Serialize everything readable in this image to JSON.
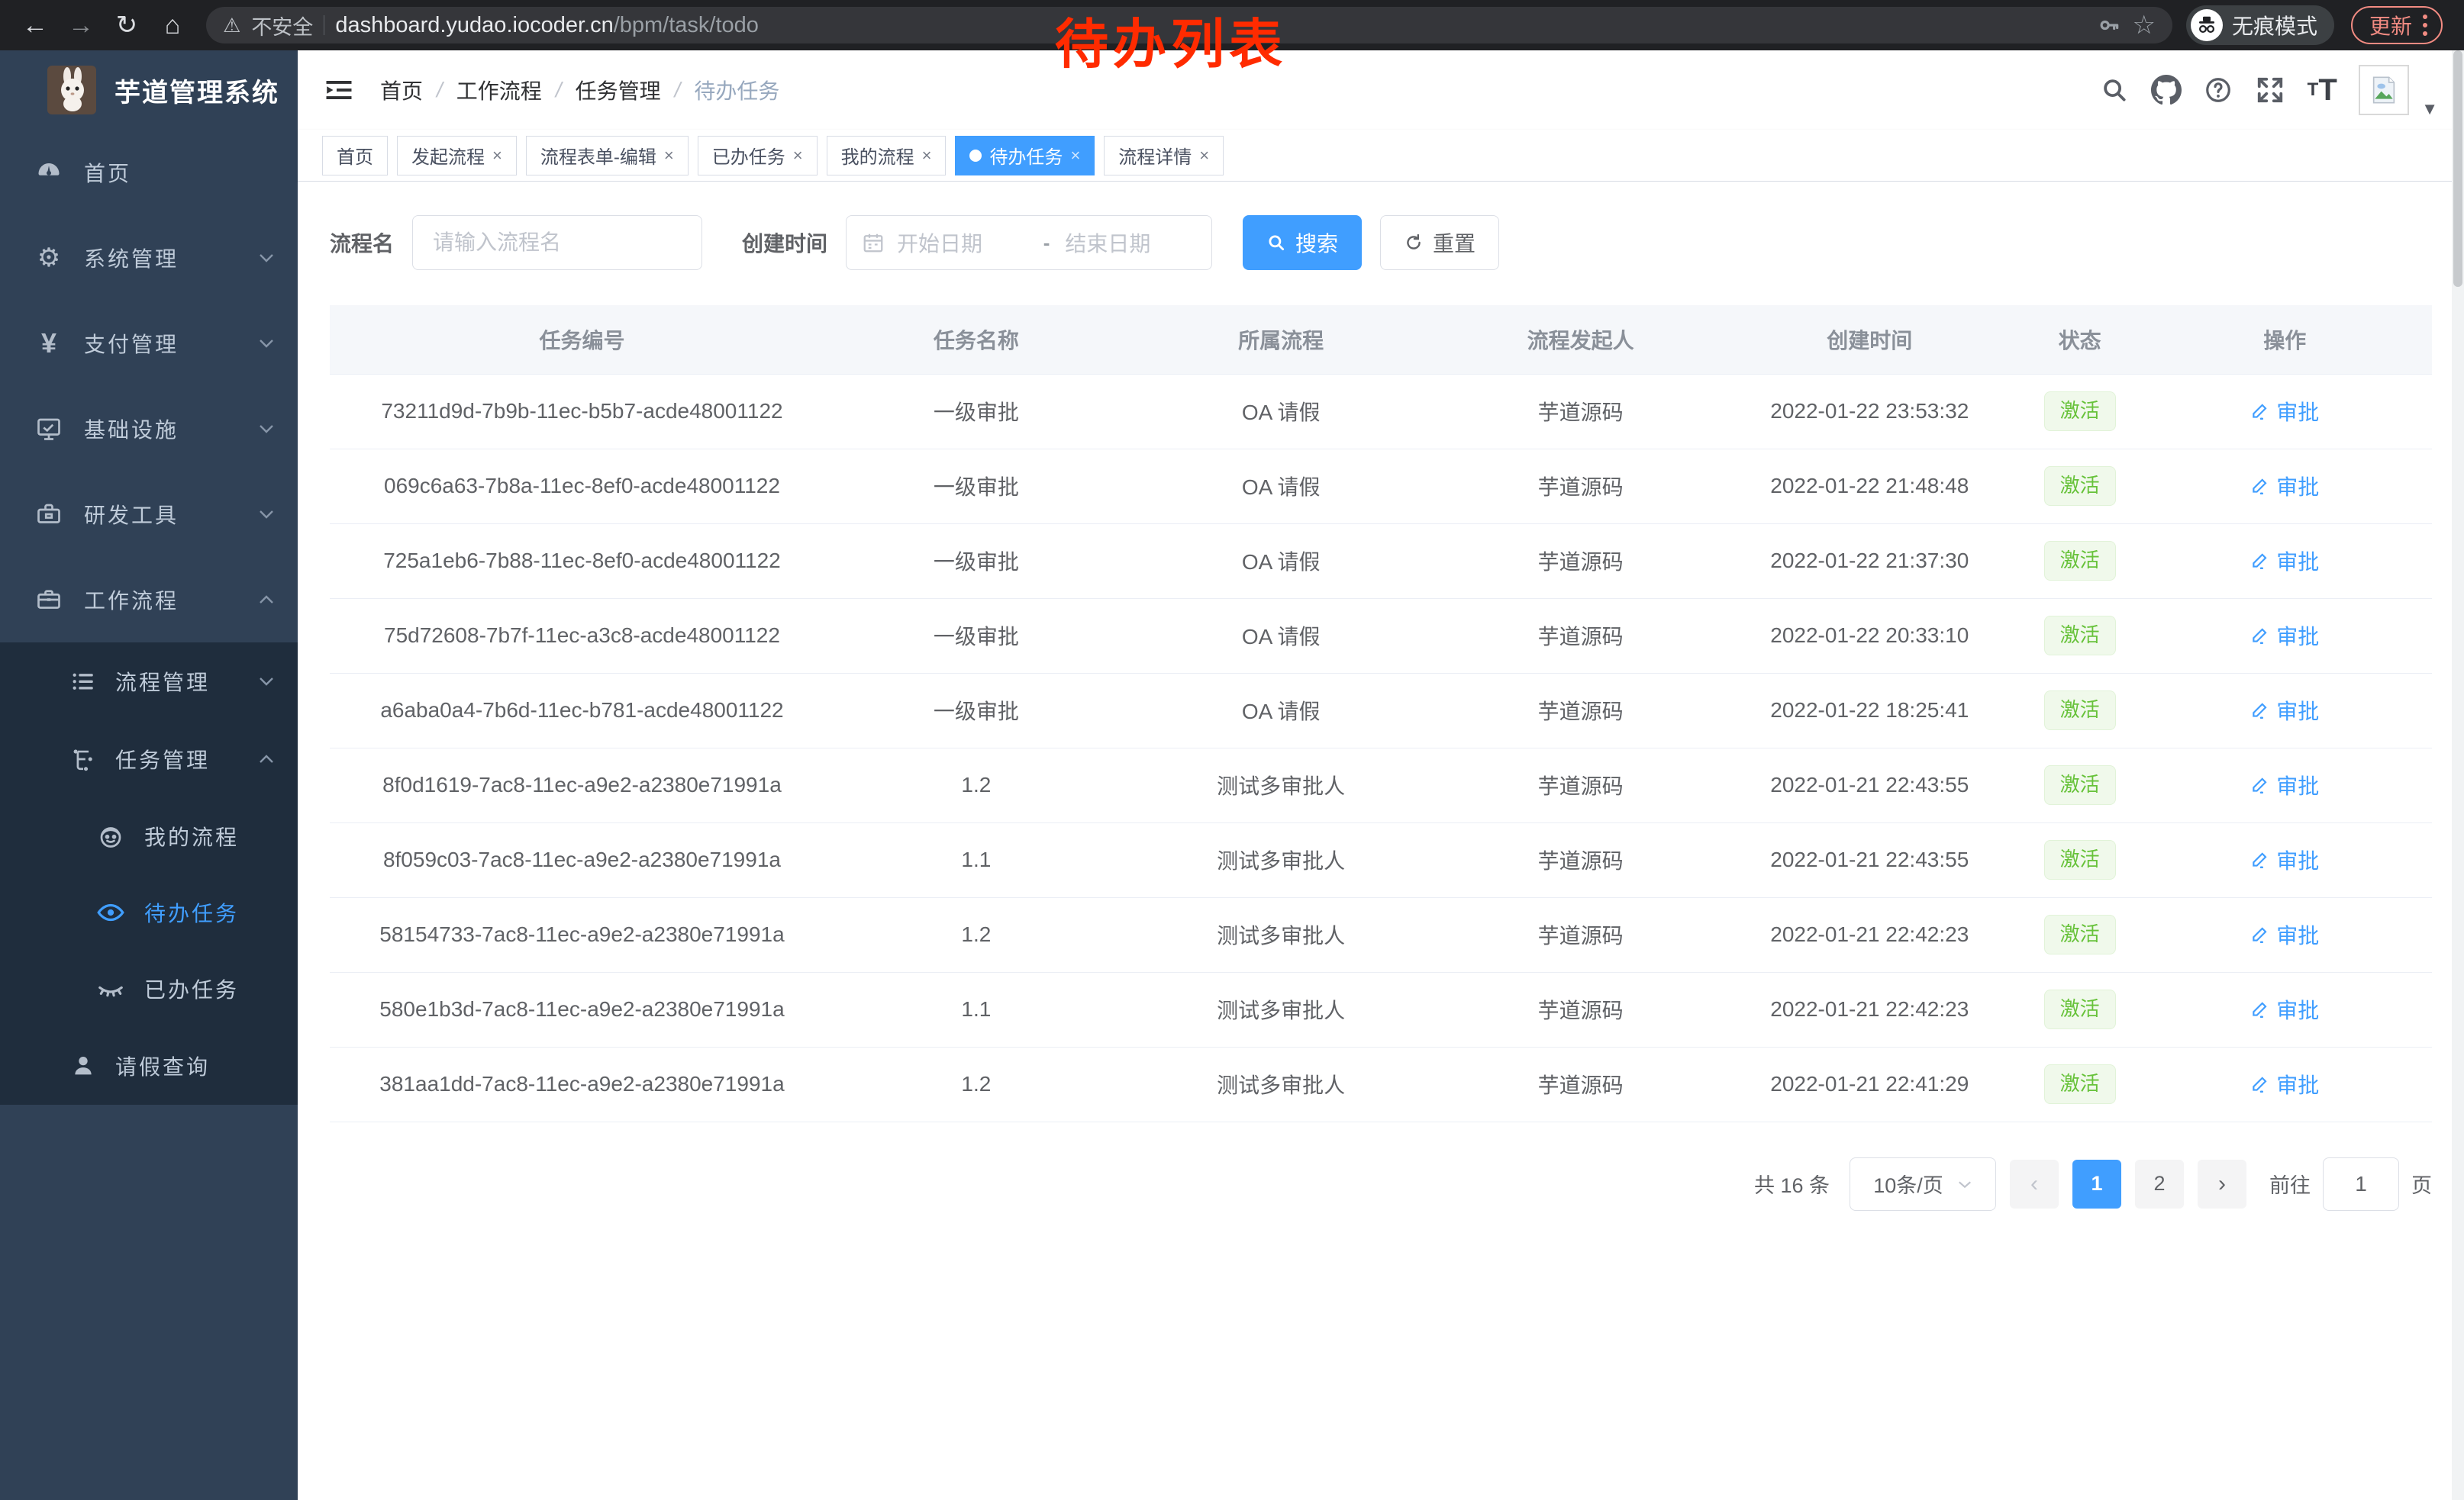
{
  "colors": {
    "accent": "#409eff",
    "sidebar_bg": "#304156",
    "submenu_bg": "#1f2d3d",
    "badge_green_text": "#67c23a",
    "badge_green_bg": "#f0f9eb",
    "annotation_red": "#ff2b00",
    "chrome_update": "#f28b82"
  },
  "browser": {
    "security_label": "不安全",
    "url_host": "dashboard.yudao.iocoder.cn",
    "url_path": "/bpm/task/todo",
    "incognito_label": "无痕模式",
    "update_label": "更新"
  },
  "annotation": {
    "text": "待办列表"
  },
  "sidebar": {
    "title": "芋道管理系统",
    "items": [
      {
        "label": "首页",
        "icon": "dashboard-icon"
      },
      {
        "label": "系统管理",
        "icon": "gear-icon",
        "chevron": "down"
      },
      {
        "label": "支付管理",
        "icon": "yen-icon",
        "chevron": "down",
        "icon_glyph": "¥"
      },
      {
        "label": "基础设施",
        "icon": "monitor-icon",
        "chevron": "down"
      },
      {
        "label": "研发工具",
        "icon": "toolbox-icon",
        "chevron": "down"
      },
      {
        "label": "工作流程",
        "icon": "briefcase-icon",
        "chevron": "up"
      },
      {
        "label": "流程管理",
        "icon": "list-icon",
        "chevron": "down"
      },
      {
        "label": "任务管理",
        "icon": "tree-icon",
        "chevron": "up"
      },
      {
        "label": "我的流程",
        "icon": "face-icon"
      },
      {
        "label": "待办任务",
        "icon": "eye-icon",
        "active": true
      },
      {
        "label": "已办任务",
        "icon": "eye-closed-icon"
      },
      {
        "label": "请假查询",
        "icon": "user-icon"
      }
    ]
  },
  "header": {
    "breadcrumb": [
      "首页",
      "工作流程",
      "任务管理",
      "待办任务"
    ],
    "separator": "/"
  },
  "tabs": [
    {
      "label": "首页",
      "closable": false,
      "active": false
    },
    {
      "label": "发起流程",
      "closable": true,
      "active": false
    },
    {
      "label": "流程表单-编辑",
      "closable": true,
      "active": false
    },
    {
      "label": "已办任务",
      "closable": true,
      "active": false
    },
    {
      "label": "我的流程",
      "closable": true,
      "active": false
    },
    {
      "label": "待办任务",
      "closable": true,
      "active": true
    },
    {
      "label": "流程详情",
      "closable": true,
      "active": false
    }
  ],
  "filters": {
    "name_label": "流程名",
    "name_placeholder": "请输入流程名",
    "time_label": "创建时间",
    "start_placeholder": "开始日期",
    "range_separator": "-",
    "end_placeholder": "结束日期",
    "search_label": "搜索",
    "reset_label": "重置"
  },
  "table": {
    "columns": [
      "任务编号",
      "任务名称",
      "所属流程",
      "流程发起人",
      "创建时间",
      "状态",
      "操作"
    ],
    "rows": [
      {
        "id": "73211d9d-7b9b-11ec-b5b7-acde48001122",
        "name": "一级审批",
        "process": "OA 请假",
        "initiator": "芋道源码",
        "time": "2022-01-22 23:53:32",
        "status": "激活",
        "action": "审批"
      },
      {
        "id": "069c6a63-7b8a-11ec-8ef0-acde48001122",
        "name": "一级审批",
        "process": "OA 请假",
        "initiator": "芋道源码",
        "time": "2022-01-22 21:48:48",
        "status": "激活",
        "action": "审批"
      },
      {
        "id": "725a1eb6-7b88-11ec-8ef0-acde48001122",
        "name": "一级审批",
        "process": "OA 请假",
        "initiator": "芋道源码",
        "time": "2022-01-22 21:37:30",
        "status": "激活",
        "action": "审批"
      },
      {
        "id": "75d72608-7b7f-11ec-a3c8-acde48001122",
        "name": "一级审批",
        "process": "OA 请假",
        "initiator": "芋道源码",
        "time": "2022-01-22 20:33:10",
        "status": "激活",
        "action": "审批"
      },
      {
        "id": "a6aba0a4-7b6d-11ec-b781-acde48001122",
        "name": "一级审批",
        "process": "OA 请假",
        "initiator": "芋道源码",
        "time": "2022-01-22 18:25:41",
        "status": "激活",
        "action": "审批"
      },
      {
        "id": "8f0d1619-7ac8-11ec-a9e2-a2380e71991a",
        "name": "1.2",
        "process": "测试多审批人",
        "initiator": "芋道源码",
        "time": "2022-01-21 22:43:55",
        "status": "激活",
        "action": "审批"
      },
      {
        "id": "8f059c03-7ac8-11ec-a9e2-a2380e71991a",
        "name": "1.1",
        "process": "测试多审批人",
        "initiator": "芋道源码",
        "time": "2022-01-21 22:43:55",
        "status": "激活",
        "action": "审批"
      },
      {
        "id": "58154733-7ac8-11ec-a9e2-a2380e71991a",
        "name": "1.2",
        "process": "测试多审批人",
        "initiator": "芋道源码",
        "time": "2022-01-21 22:42:23",
        "status": "激活",
        "action": "审批"
      },
      {
        "id": "580e1b3d-7ac8-11ec-a9e2-a2380e71991a",
        "name": "1.1",
        "process": "测试多审批人",
        "initiator": "芋道源码",
        "time": "2022-01-21 22:42:23",
        "status": "激活",
        "action": "审批"
      },
      {
        "id": "381aa1dd-7ac8-11ec-a9e2-a2380e71991a",
        "name": "1.2",
        "process": "测试多审批人",
        "initiator": "芋道源码",
        "time": "2022-01-21 22:41:29",
        "status": "激活",
        "action": "审批"
      }
    ]
  },
  "pagination": {
    "total_label": "共 16 条",
    "page_size": "10条/页",
    "pages": [
      "1",
      "2"
    ],
    "active_page": "1",
    "goto_label": "前往",
    "goto_value": "1",
    "goto_suffix": "页"
  }
}
